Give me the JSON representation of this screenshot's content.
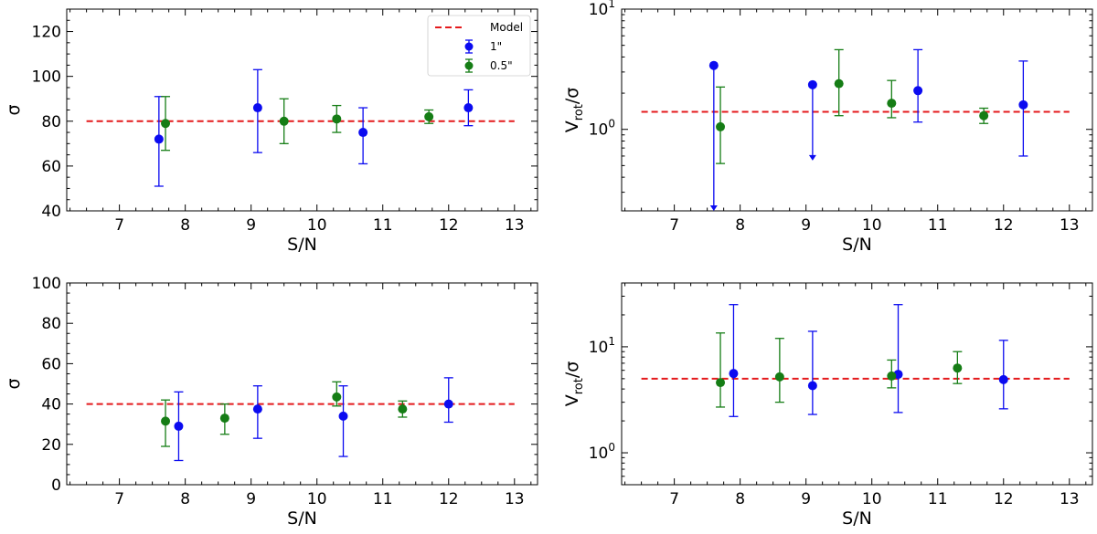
{
  "colors": {
    "model": "#e41a1c",
    "blue": "#0b0bf0",
    "green": "#157d15",
    "axis": "#000000"
  },
  "legend": {
    "model_label": "Model",
    "series_1_label": "1\"",
    "series_2_label": "0.5\"",
    "placement": "top-right of top-left panel"
  },
  "chart_data": [
    {
      "type": "scatter",
      "panel": "top-left",
      "xlabel": "S/N",
      "ylabel": "σ",
      "xlim": [
        6.2,
        13.35
      ],
      "ylim": [
        40,
        130
      ],
      "yscale": "linear",
      "xticks": [
        7,
        8,
        9,
        10,
        11,
        12,
        13
      ],
      "yticks": [
        40,
        60,
        80,
        100,
        120
      ],
      "model_value": 80,
      "series": [
        {
          "name": "1\"",
          "color": "blue",
          "points": [
            {
              "x": 7.6,
              "y": 72,
              "lo": 51,
              "hi": 91
            },
            {
              "x": 9.1,
              "y": 86,
              "lo": 66,
              "hi": 103
            },
            {
              "x": 10.7,
              "y": 75,
              "lo": 61,
              "hi": 86
            },
            {
              "x": 12.3,
              "y": 86,
              "lo": 78,
              "hi": 94
            }
          ]
        },
        {
          "name": "0.5\"",
          "color": "green",
          "points": [
            {
              "x": 7.7,
              "y": 79,
              "lo": 67,
              "hi": 91
            },
            {
              "x": 9.5,
              "y": 80,
              "lo": 70,
              "hi": 90
            },
            {
              "x": 10.3,
              "y": 81,
              "lo": 75,
              "hi": 87
            },
            {
              "x": 11.7,
              "y": 82,
              "lo": 79,
              "hi": 85
            }
          ]
        }
      ]
    },
    {
      "type": "scatter",
      "panel": "top-right",
      "xlabel": "S/N",
      "ylabel_main": "V",
      "ylabel_sub": "rot",
      "ylabel_tail": "/σ",
      "xlim": [
        6.2,
        13.35
      ],
      "ylim": [
        0.21,
        10
      ],
      "yscale": "log",
      "xticks": [
        7,
        8,
        9,
        10,
        11,
        12,
        13
      ],
      "yticks": [
        1,
        10
      ],
      "model_value": 1.4,
      "series": [
        {
          "name": "1\"",
          "color": "blue",
          "points": [
            {
              "x": 7.6,
              "y": 3.4,
              "hi": 3.4,
              "lo": 0.21,
              "upper_limit": true
            },
            {
              "x": 9.1,
              "y": 2.35,
              "hi": 2.35,
              "lo": 0.55,
              "upper_limit": true
            },
            {
              "x": 10.7,
              "y": 2.1,
              "lo": 1.15,
              "hi": 4.6
            },
            {
              "x": 12.3,
              "y": 1.6,
              "lo": 0.6,
              "hi": 3.7
            }
          ]
        },
        {
          "name": "0.5\"",
          "color": "green",
          "points": [
            {
              "x": 7.7,
              "y": 1.05,
              "lo": 0.52,
              "hi": 2.25
            },
            {
              "x": 9.5,
              "y": 2.4,
              "lo": 1.3,
              "hi": 4.6
            },
            {
              "x": 10.3,
              "y": 1.65,
              "lo": 1.25,
              "hi": 2.55
            },
            {
              "x": 11.7,
              "y": 1.3,
              "lo": 1.12,
              "hi": 1.5
            }
          ]
        }
      ]
    },
    {
      "type": "scatter",
      "panel": "bottom-left",
      "xlabel": "S/N",
      "ylabel": "σ",
      "xlim": [
        6.2,
        13.35
      ],
      "ylim": [
        0,
        100
      ],
      "yscale": "linear",
      "xticks": [
        7,
        8,
        9,
        10,
        11,
        12,
        13
      ],
      "yticks": [
        0,
        20,
        40,
        60,
        80,
        100
      ],
      "model_value": 40,
      "series": [
        {
          "name": "1\"",
          "color": "blue",
          "points": [
            {
              "x": 7.9,
              "y": 29,
              "lo": 12,
              "hi": 46
            },
            {
              "x": 9.1,
              "y": 37.5,
              "lo": 23,
              "hi": 49
            },
            {
              "x": 10.4,
              "y": 34,
              "lo": 14,
              "hi": 49
            },
            {
              "x": 12.0,
              "y": 40,
              "lo": 31,
              "hi": 53
            }
          ]
        },
        {
          "name": "0.5\"",
          "color": "green",
          "points": [
            {
              "x": 7.7,
              "y": 31.5,
              "lo": 19,
              "hi": 42
            },
            {
              "x": 8.6,
              "y": 33,
              "lo": 25,
              "hi": 40
            },
            {
              "x": 10.3,
              "y": 43.5,
              "lo": 39,
              "hi": 51
            },
            {
              "x": 11.3,
              "y": 37.5,
              "lo": 33.5,
              "hi": 41.5
            }
          ]
        }
      ]
    },
    {
      "type": "scatter",
      "panel": "bottom-right",
      "xlabel": "S/N",
      "ylabel_main": "V",
      "ylabel_sub": "rot",
      "ylabel_tail": "/σ",
      "xlim": [
        6.2,
        13.35
      ],
      "ylim": [
        0.5,
        40
      ],
      "yscale": "log",
      "xticks": [
        7,
        8,
        9,
        10,
        11,
        12,
        13
      ],
      "yticks": [
        1,
        10
      ],
      "model_value": 5,
      "series": [
        {
          "name": "1\"",
          "color": "blue",
          "points": [
            {
              "x": 7.9,
              "y": 5.6,
              "lo": 2.2,
              "hi": 25
            },
            {
              "x": 9.1,
              "y": 4.3,
              "lo": 2.3,
              "hi": 14
            },
            {
              "x": 10.4,
              "y": 5.5,
              "lo": 2.4,
              "hi": 25
            },
            {
              "x": 12.0,
              "y": 4.9,
              "lo": 2.6,
              "hi": 11.5
            }
          ]
        },
        {
          "name": "0.5\"",
          "color": "green",
          "points": [
            {
              "x": 7.7,
              "y": 4.6,
              "lo": 2.7,
              "hi": 13.5
            },
            {
              "x": 8.6,
              "y": 5.2,
              "lo": 3.0,
              "hi": 12
            },
            {
              "x": 10.3,
              "y": 5.3,
              "lo": 4.1,
              "hi": 7.5
            },
            {
              "x": 11.3,
              "y": 6.3,
              "lo": 4.5,
              "hi": 9
            }
          ]
        }
      ]
    }
  ]
}
